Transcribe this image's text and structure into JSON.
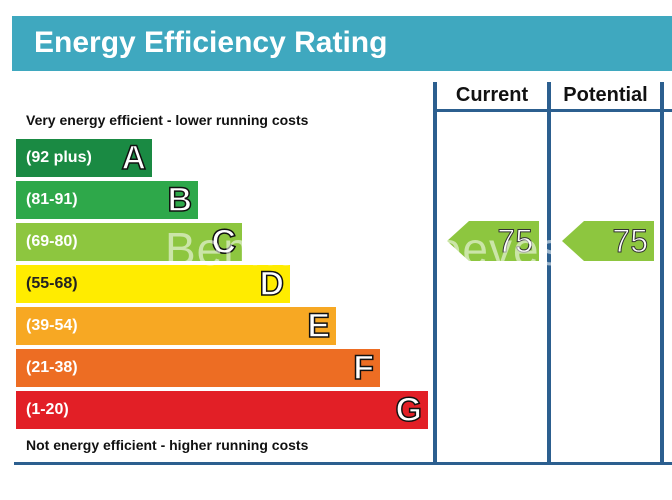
{
  "title": "Energy Efficiency Rating",
  "columns": {
    "current": "Current",
    "potential": "Potential"
  },
  "top_caption": "Very energy efficient - lower running costs",
  "bottom_caption": "Not energy efficient - higher running costs",
  "watermark": "Benham & Reeves",
  "chart_data": {
    "type": "bar",
    "categories": [
      "A",
      "B",
      "C",
      "D",
      "E",
      "F",
      "G"
    ],
    "ranges": [
      "(92 plus)",
      "(81-91)",
      "(69-80)",
      "(55-68)",
      "(39-54)",
      "(21-38)",
      "(1-20)"
    ],
    "band_colors": [
      "#1a8a43",
      "#2ea84a",
      "#8dc63f",
      "#ffec00",
      "#f7a823",
      "#ed6d23",
      "#e21f26"
    ],
    "current": 75,
    "potential": 75,
    "current_band": "C",
    "potential_band": "C"
  }
}
